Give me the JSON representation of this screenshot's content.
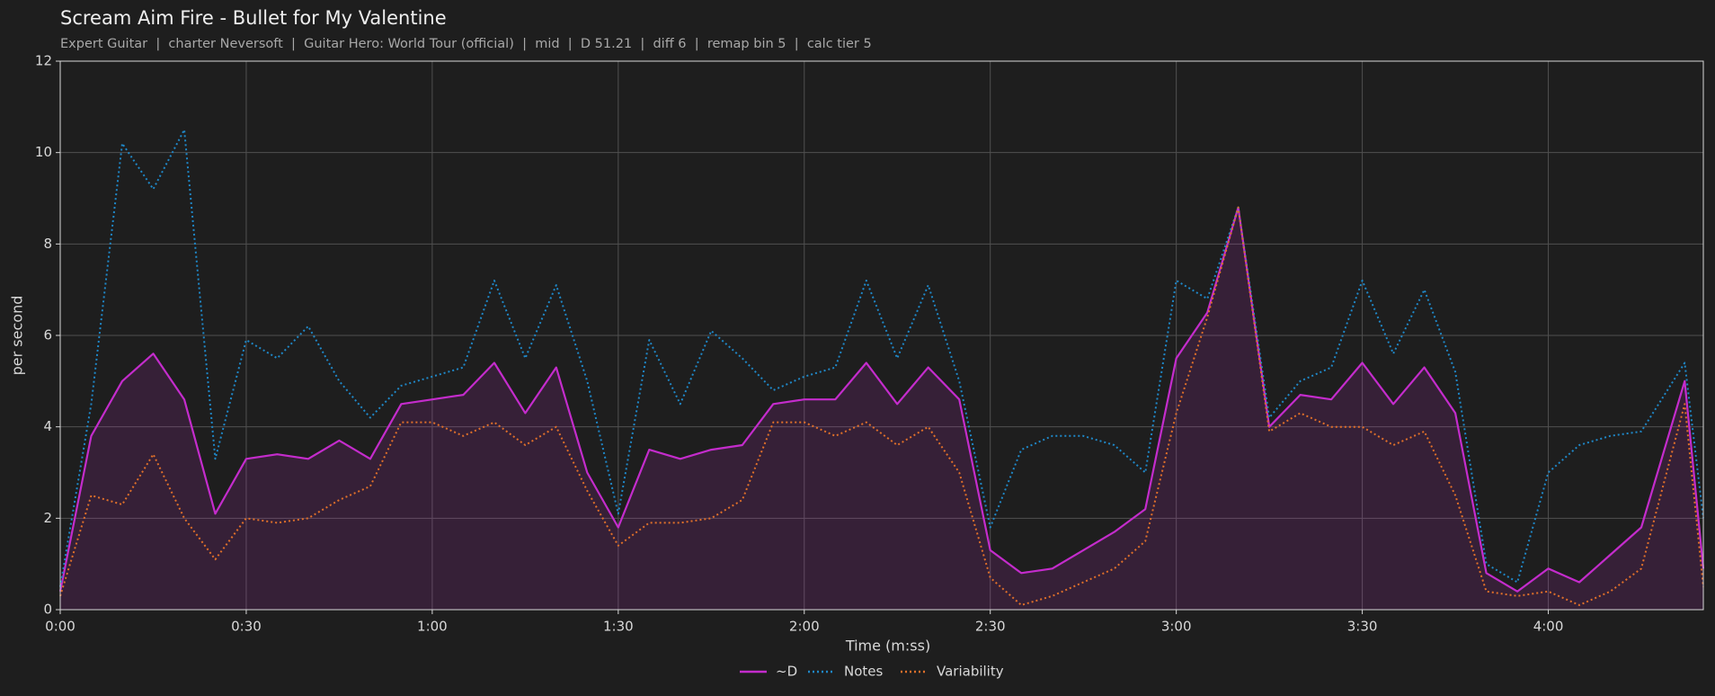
{
  "chart_data": {
    "type": "line",
    "title": "Scream Aim Fire - Bullet for My Valentine",
    "subtitle": "Expert Guitar  |  charter Neversoft  |  Guitar Hero: World Tour (official)  |  mid  |  D 51.21  |  diff 6  |  remap bin 5  |  calc tier 5",
    "x_label": "Time (m:ss)",
    "y_label": "per second",
    "x": [
      0,
      5,
      10,
      15,
      20,
      25,
      30,
      35,
      40,
      45,
      50,
      55,
      60,
      65,
      70,
      75,
      80,
      85,
      90,
      95,
      100,
      105,
      110,
      115,
      120,
      125,
      130,
      135,
      140,
      145,
      150,
      155,
      160,
      165,
      170,
      175,
      180,
      185,
      190,
      195,
      200,
      205,
      210,
      215,
      220,
      225,
      230,
      235,
      240,
      245,
      250,
      255,
      262,
      265
    ],
    "series": [
      {
        "name": "~D",
        "color": "#c42ccc",
        "fill": true,
        "dash": "solid",
        "values": [
          0.4,
          3.8,
          5.0,
          5.6,
          4.6,
          2.1,
          3.3,
          3.4,
          3.3,
          3.7,
          3.3,
          4.5,
          4.6,
          4.7,
          5.4,
          4.3,
          5.3,
          3.0,
          1.8,
          3.5,
          3.3,
          3.5,
          3.6,
          4.5,
          4.6,
          4.6,
          5.4,
          4.5,
          5.3,
          4.6,
          1.3,
          0.8,
          0.9,
          1.3,
          1.7,
          2.2,
          5.5,
          6.5,
          8.8,
          4.0,
          4.7,
          4.6,
          5.4,
          4.5,
          5.3,
          4.3,
          0.8,
          0.4,
          0.9,
          0.6,
          1.2,
          1.8,
          5.0,
          0.9
        ]
      },
      {
        "name": "Notes",
        "color": "#1f88c8",
        "fill": false,
        "dash": "dotted",
        "values": [
          0.5,
          4.5,
          10.2,
          9.2,
          10.5,
          3.3,
          5.9,
          5.5,
          6.2,
          5.0,
          4.2,
          4.9,
          5.1,
          5.3,
          7.2,
          5.5,
          7.1,
          5.0,
          2.1,
          5.9,
          4.5,
          6.1,
          5.5,
          4.8,
          5.1,
          5.3,
          7.2,
          5.5,
          7.1,
          5.0,
          1.8,
          3.5,
          3.8,
          3.8,
          3.6,
          3.0,
          7.2,
          6.8,
          8.8,
          4.2,
          5.0,
          5.3,
          7.2,
          5.6,
          7.0,
          5.2,
          1.0,
          0.6,
          3.0,
          3.6,
          3.8,
          3.9,
          5.4,
          2.0
        ]
      },
      {
        "name": "Variability",
        "color": "#e0702a",
        "fill": false,
        "dash": "dotted",
        "values": [
          0.3,
          2.5,
          2.3,
          3.4,
          2.0,
          1.1,
          2.0,
          1.9,
          2.0,
          2.4,
          2.7,
          4.1,
          4.1,
          3.8,
          4.1,
          3.6,
          4.0,
          2.6,
          1.4,
          1.9,
          1.9,
          2.0,
          2.4,
          4.1,
          4.1,
          3.8,
          4.1,
          3.6,
          4.0,
          3.0,
          0.7,
          0.1,
          0.3,
          0.6,
          0.9,
          1.5,
          4.3,
          6.4,
          8.8,
          3.9,
          4.3,
          4.0,
          4.0,
          3.6,
          3.9,
          2.5,
          0.4,
          0.3,
          0.4,
          0.1,
          0.4,
          0.9,
          4.5,
          0.5
        ]
      }
    ],
    "xlim": [
      0,
      265
    ],
    "xticks": [
      {
        "value": 0,
        "label": "0:00"
      },
      {
        "value": 30,
        "label": "0:30"
      },
      {
        "value": 60,
        "label": "1:00"
      },
      {
        "value": 90,
        "label": "1:30"
      },
      {
        "value": 120,
        "label": "2:00"
      },
      {
        "value": 150,
        "label": "2:30"
      },
      {
        "value": 180,
        "label": "3:00"
      },
      {
        "value": 210,
        "label": "3:30"
      },
      {
        "value": 240,
        "label": "4:00"
      }
    ],
    "ylim": [
      0,
      12
    ],
    "yticks": [
      0,
      2,
      4,
      6,
      8,
      10,
      12
    ],
    "grid": true,
    "legend": "bottom"
  }
}
